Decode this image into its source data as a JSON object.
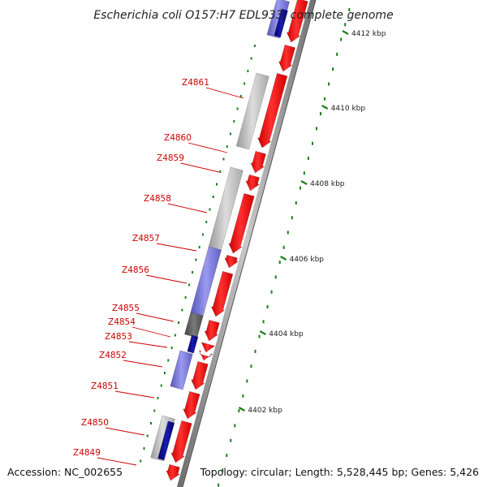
{
  "title": "Escherichia coli O157:H7 EDL933, complete genome",
  "footer": {
    "accession": "Accession: NC_002655",
    "summary": "Topology: circular; Length: 5,528,445 bp; Genes: 5,426"
  },
  "colors": {
    "forward_cds": "#ff0000",
    "cog_gray": "#c0c0c0",
    "cog_purple": "#7b7bd6",
    "cog_navy": "#0b0b8f",
    "cog_dark": "#5f5f5f",
    "backbone": "#8a8a8a",
    "gene_label": "#cc0000",
    "tick": "#1a7f1a"
  },
  "ticks": [
    {
      "label": "4402 kbp"
    },
    {
      "label": "4404 kbp"
    },
    {
      "label": "4406 kbp"
    },
    {
      "label": "4408 kbp"
    },
    {
      "label": "4410 kbp"
    },
    {
      "label": "4412 kbp"
    }
  ],
  "genes": [
    {
      "label": "Z4849"
    },
    {
      "label": "Z4850"
    },
    {
      "label": "Z4851"
    },
    {
      "label": "Z4852"
    },
    {
      "label": "Z4853"
    },
    {
      "label": "Z4854"
    },
    {
      "label": "Z4855"
    },
    {
      "label": "Z4856"
    },
    {
      "label": "Z4857"
    },
    {
      "label": "Z4858"
    },
    {
      "label": "Z4859"
    },
    {
      "label": "Z4860"
    },
    {
      "label": "Z4861"
    }
  ]
}
